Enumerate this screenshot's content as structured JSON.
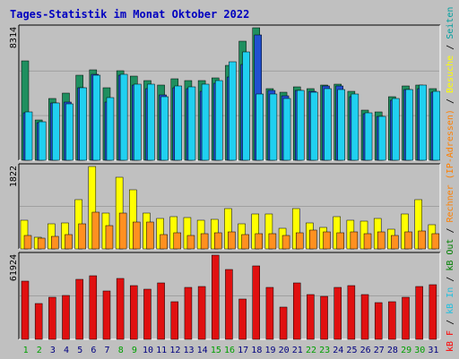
{
  "chart_data": {
    "type": "bar",
    "title": "Tages-Statistik im Monat Oktober 2022",
    "days": [
      "1",
      "2",
      "3",
      "4",
      "5",
      "6",
      "7",
      "8",
      "9",
      "10",
      "11",
      "12",
      "13",
      "14",
      "15",
      "16",
      "17",
      "18",
      "19",
      "20",
      "21",
      "22",
      "23",
      "24",
      "25",
      "26",
      "27",
      "28",
      "29",
      "30",
      "31"
    ],
    "weekend_days": [
      "1",
      "2",
      "8",
      "9",
      "15",
      "16",
      "22",
      "23",
      "29",
      "30"
    ],
    "panels": [
      {
        "name": "panel-hits",
        "ymax_label": "8314",
        "ymax": 8314,
        "series": [
          {
            "name": "Anfragen",
            "color": "#1f8f5f",
            "values": [
              6220,
              2510,
              3880,
              4230,
              5340,
              5660,
              4560,
              5630,
              5270,
              4980,
              4740,
              5140,
              4980,
              5000,
              5180,
              5970,
              7480,
              8314,
              4520,
              4250,
              4580,
              4490,
              4700,
              4750,
              4300,
              3140,
              3020,
              3970,
              4640,
              4720,
              4520
            ]
          },
          {
            "name": "Dateien",
            "color": "#2050d0",
            "values": [
              2970,
              2380,
              3620,
              3670,
              4530,
              5400,
              3630,
              5330,
              4740,
              4490,
              4120,
              4570,
              4480,
              4330,
              4850,
              5210,
              6020,
              7880,
              4360,
              4060,
              4360,
              4330,
              4650,
              4650,
              4010,
              2930,
              2780,
              3750,
              4460,
              4470,
              4270
            ]
          },
          {
            "name": "Seiten",
            "color": "#20d0f0",
            "values": [
              3020,
              2410,
              3610,
              3560,
              4560,
              5320,
              3960,
              5420,
              4790,
              4770,
              3990,
              4670,
              4620,
              4760,
              4990,
              6180,
              6770,
              4160,
              4170,
              3860,
              4400,
              4250,
              4490,
              4420,
              4180,
              2990,
              2740,
              3860,
              4440,
              4720,
              4330
            ]
          }
        ]
      },
      {
        "name": "panel-visits",
        "ymax_label": "1822",
        "ymax": 1822,
        "series": [
          {
            "name": "Besuche",
            "color": "#ffff00",
            "values": [
              640,
              250,
              560,
              570,
              1090,
              1822,
              800,
              1590,
              1300,
              790,
              680,
              720,
              700,
              640,
              660,
              900,
              550,
              770,
              770,
              460,
              890,
              570,
              470,
              720,
              630,
              620,
              670,
              430,
              780,
              1080,
              530
            ]
          },
          {
            "name": "Rechner (IP-Adressen)",
            "color": "#ff9020",
            "values": [
              290,
              230,
              280,
              320,
              560,
              810,
              520,
              800,
              600,
              590,
              320,
              360,
              300,
              340,
              360,
              380,
              320,
              330,
              340,
              290,
              350,
              410,
              380,
              360,
              370,
              330,
              380,
              300,
              370,
              390,
              340
            ]
          }
        ]
      },
      {
        "name": "panel-kb",
        "ymax_label": "61924",
        "ymax": 61924,
        "series": [
          {
            "name": "kB F",
            "color": "#e01010",
            "values": [
              42700,
              26600,
              31200,
              32100,
              44000,
              46500,
              35800,
              44600,
              39400,
              37000,
              41500,
              27900,
              38500,
              38900,
              61924,
              51400,
              29600,
              53700,
              38100,
              23400,
              41800,
              33000,
              31300,
              38100,
              39200,
              32800,
              27100,
              27500,
              30700,
              38900,
              40000
            ]
          }
        ]
      }
    ],
    "legend": [
      {
        "text": "kB F",
        "color": "#ff0000"
      },
      {
        "text": "kB In",
        "color": "#20c0e0"
      },
      {
        "text": "kB Out",
        "color": "#008000"
      },
      {
        "text": "Rechner (IP-Adressen)",
        "color": "#ff8000"
      },
      {
        "text": "Besuche",
        "color": "#ffff00"
      },
      {
        "text": "Seiten",
        "color": "#00a0a0"
      },
      {
        "text": "Dateien",
        "color": "#0000ff"
      },
      {
        "text": "Anfragen",
        "color": "#008040"
      }
    ],
    "legend_separator": " / ",
    "colors": {
      "title": "#0000c0",
      "weekday_label": "#000080",
      "weekend_label": "#00a000",
      "plot_bg": "#c0c0c0",
      "grid": "#a0a0a0"
    },
    "grid": true
  }
}
